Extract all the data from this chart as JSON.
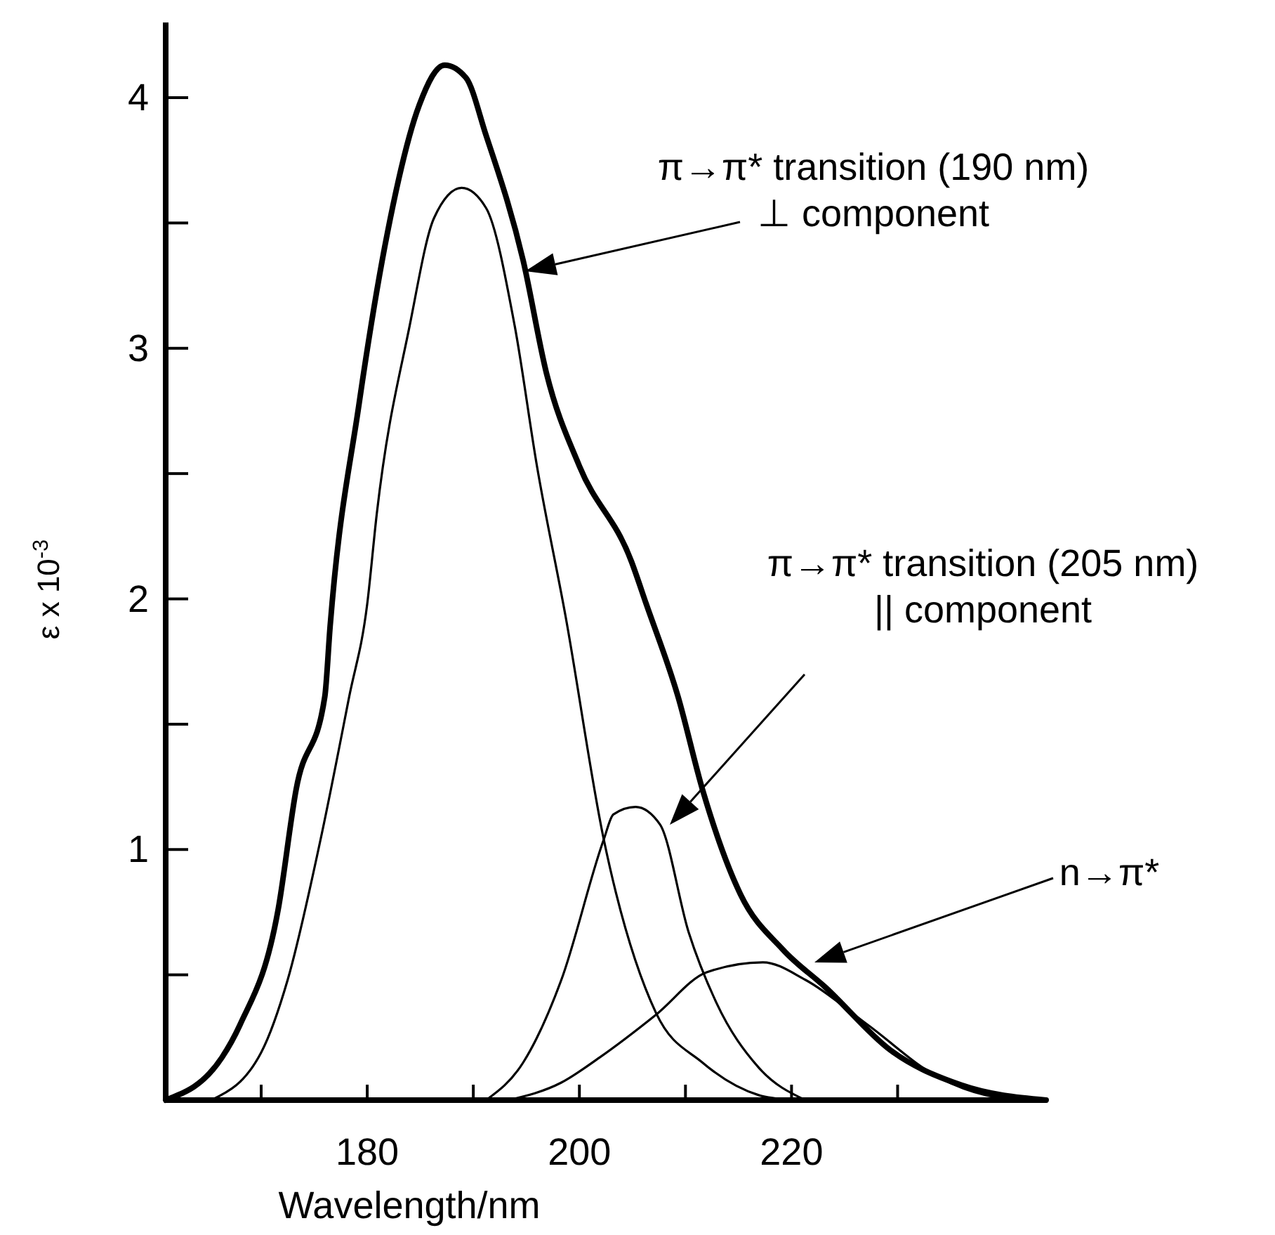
{
  "chart_data": {
    "type": "line",
    "xlabel": "Wavelength/nm",
    "ylabel": "ε x 10$^{-3}$",
    "xlim": [
      161,
      244
    ],
    "ylim": [
      0,
      4.3
    ],
    "xticks": [
      {
        "value": 170,
        "label": null
      },
      180,
      {
        "value": 190,
        "label": null
      },
      200,
      {
        "value": 210,
        "label": null
      },
      220,
      {
        "value": 230,
        "label": null
      }
    ],
    "yticks": [
      {
        "value": 0.5,
        "label": null
      },
      1,
      {
        "value": 1.5,
        "label": null
      },
      2,
      {
        "value": 2.5,
        "label": null
      },
      3,
      {
        "value": 3.5,
        "label": null
      },
      4
    ],
    "line_style": "solid",
    "series": [
      {
        "color": "#000000",
        "x": [
          161,
          166.3,
          168,
          171.6,
          173.3,
          176,
          176.5,
          179.2,
          181.9,
          184.9,
          187.3,
          189.3,
          191.2,
          194.7,
          196.9,
          200,
          204.9,
          206.3,
          209.3,
          211.6,
          215.2,
          219.2,
          223.2,
          229.3,
          236,
          244
        ],
        "values": [
          0,
          0.17,
          0.3,
          0.76,
          1.24,
          1.61,
          1.89,
          2.77,
          3.46,
          3.97,
          4.13,
          4.08,
          3.85,
          3.35,
          2.9,
          2.53,
          2.15,
          1.98,
          1.61,
          1.24,
          0.82,
          0.6,
          0.45,
          0.2,
          0.06,
          0
        ]
      },
      {
        "color": "#000000",
        "x": [
          165.3,
          170,
          172.5,
          175.6,
          178.3,
          180,
          180.9,
          184,
          186.3,
          188.9,
          191.2,
          193.9,
          196,
          198.7,
          202.3,
          207.2,
          211.6,
          216.9,
          220
        ],
        "values": [
          0,
          0.19,
          0.48,
          1.04,
          1.61,
          1.98,
          2.34,
          3.09,
          3.52,
          3.64,
          3.56,
          3.09,
          2.53,
          1.93,
          1.04,
          0.35,
          0.15,
          0.02,
          0
        ]
      },
      {
        "color": "#000000",
        "x": [
          191.2,
          194.7,
          198.3,
          202.3,
          203.2,
          205.3,
          207.6,
          210.3,
          212.9,
          216.9,
          221.3
        ],
        "values": [
          0,
          0.15,
          0.48,
          1.04,
          1.14,
          1.17,
          1.1,
          0.67,
          0.39,
          0.13,
          0
        ]
      },
      {
        "color": "#000000",
        "x": [
          193.3,
          198.3,
          201.9,
          207.2,
          212,
          217.3,
          221.3,
          227.2,
          233.9,
          238.3,
          242.7
        ],
        "values": [
          0,
          0.07,
          0.17,
          0.34,
          0.51,
          0.55,
          0.48,
          0.3,
          0.09,
          0.02,
          0
        ]
      }
    ],
    "annotations": [
      "π→π* transition (190 nm)\n⊥ component",
      "π→π* transition (205 nm)\n|| component",
      "n→π*"
    ]
  }
}
